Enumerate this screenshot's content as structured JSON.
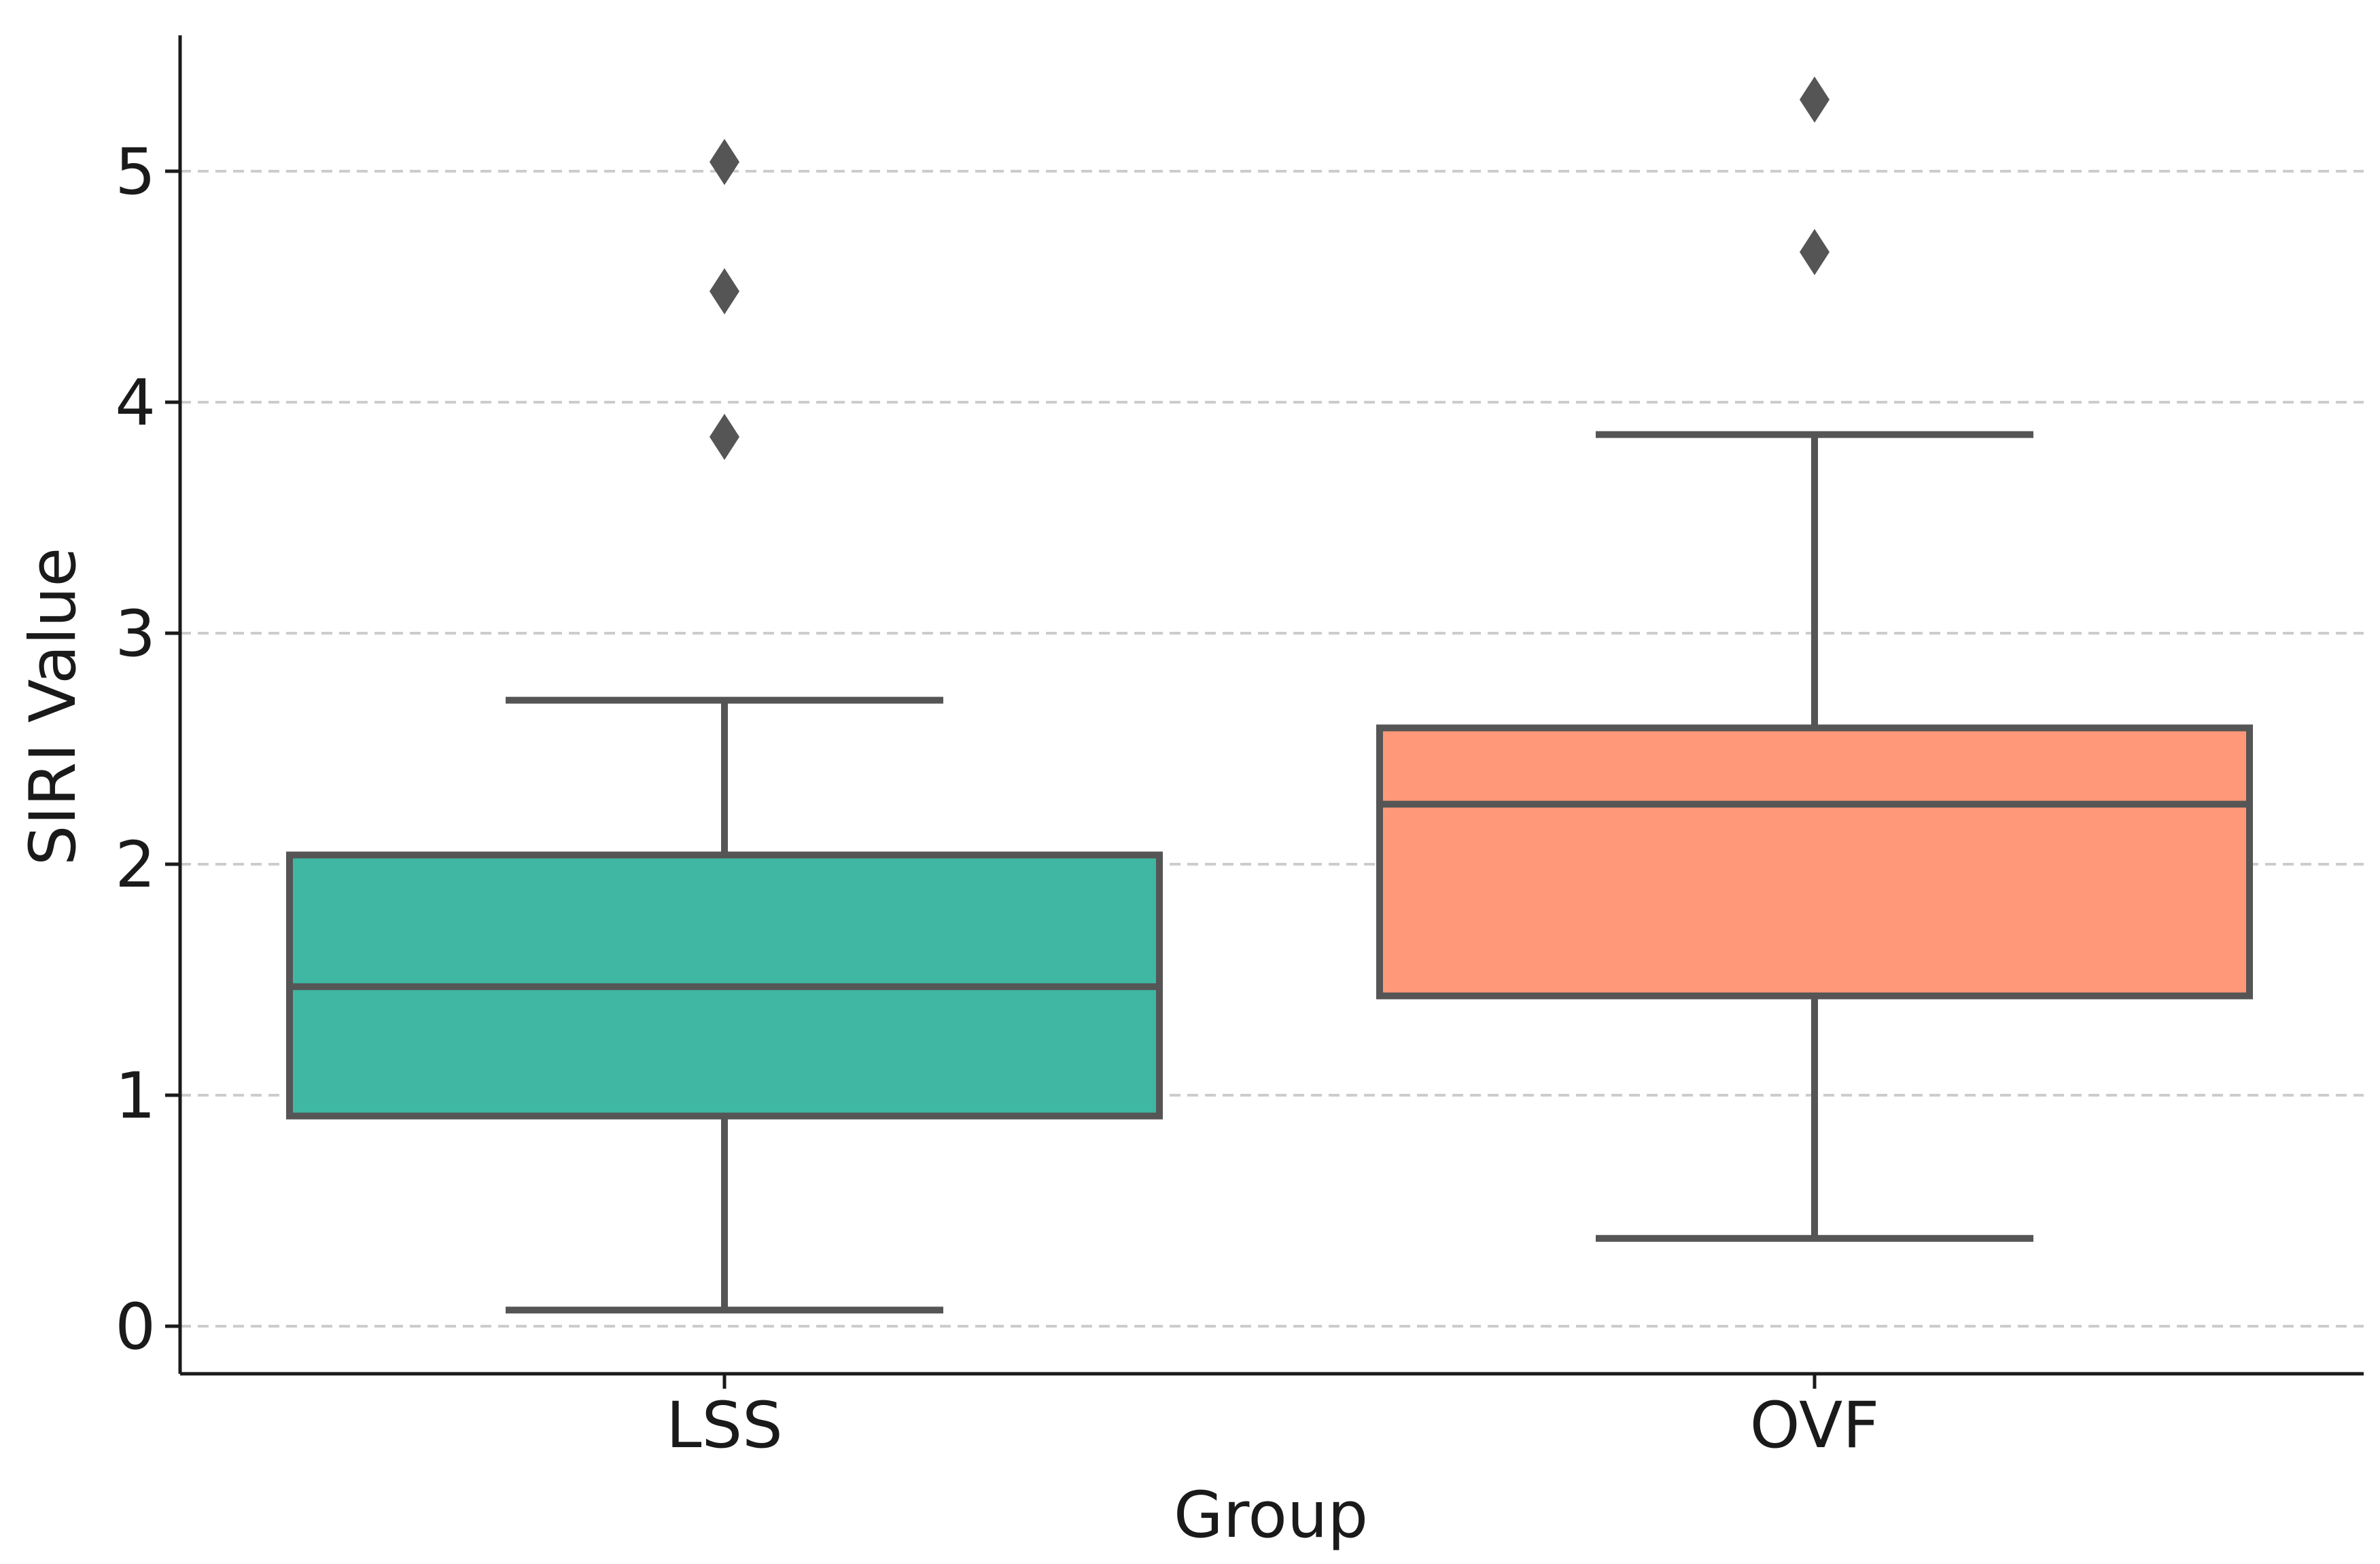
{
  "chart_data": {
    "type": "box",
    "xlabel": "Group",
    "ylabel": "SIRI Value",
    "ylim": [
      -0.2,
      5.6
    ],
    "yticks": [
      0,
      1,
      2,
      3,
      4,
      5
    ],
    "categories": [
      "LSS",
      "OVF"
    ],
    "grid": "horizontal, dashed",
    "series": [
      {
        "category": "LSS",
        "color": "#3fb7a2",
        "whisker_low": 0.07,
        "q1": 0.91,
        "median": 1.47,
        "q3": 2.04,
        "whisker_high": 2.71,
        "outliers": [
          3.85,
          4.48,
          5.04
        ]
      },
      {
        "category": "OVF",
        "color": "#ff9878",
        "whisker_low": 0.38,
        "q1": 1.43,
        "median": 2.26,
        "q3": 2.59,
        "whisker_high": 3.86,
        "outliers": [
          4.65,
          5.31
        ]
      }
    ],
    "colors": {
      "line": "#555555",
      "axis": "#1a1a1a",
      "grid": "#cccccc"
    }
  }
}
